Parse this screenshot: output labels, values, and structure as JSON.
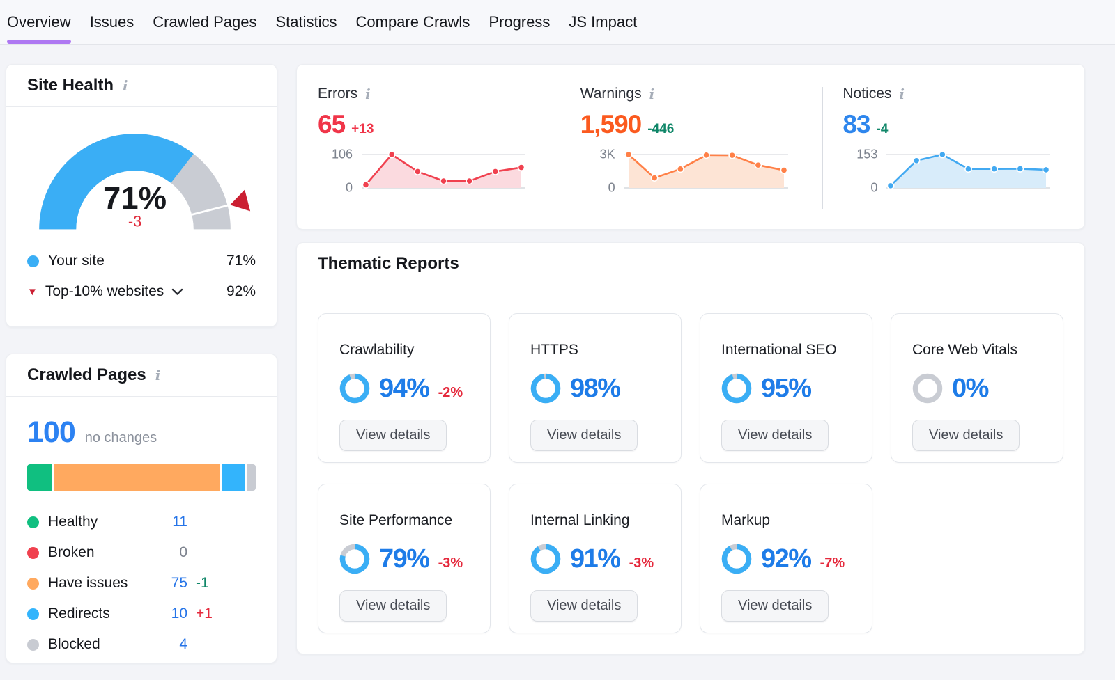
{
  "nav": {
    "active_color": "#ae78f2",
    "items": [
      {
        "label": "Overview",
        "active": true
      },
      {
        "label": "Issues",
        "active": false
      },
      {
        "label": "Crawled Pages",
        "active": false
      },
      {
        "label": "Statistics",
        "active": false
      },
      {
        "label": "Compare Crawls",
        "active": false
      },
      {
        "label": "Progress",
        "active": false
      },
      {
        "label": "JS Impact",
        "active": false
      }
    ]
  },
  "icons": {
    "info": "i",
    "triangle_down": "▼"
  },
  "site_health": {
    "title": "Site Health",
    "gauge": {
      "value_label": "71%",
      "value_pct": 71,
      "delta_label": "-3",
      "delta_color": "#e0293a",
      "benchmark_pct": 92,
      "arc_color": "#3aaef5",
      "track_color": "#c9ccd3",
      "marker_color": "#cb1f32"
    },
    "legend": [
      {
        "label": "Your site",
        "value": "71%",
        "marker_color": "#3aaef5"
      },
      {
        "label": "Top-10% websites",
        "value": "92%",
        "marker_color": "#cb1f32"
      }
    ]
  },
  "summary": {
    "sections": [
      {
        "title": "Errors",
        "value": "65",
        "delta": "+13",
        "value_color": "#f03549",
        "delta_color": "#f03549",
        "axis_max": "106",
        "axis_min": "0",
        "max": 106,
        "points": [
          10,
          106,
          52,
          22,
          22,
          52,
          65
        ],
        "line_color": "#f0414f",
        "fill_color": "#fbdadf"
      },
      {
        "title": "Warnings",
        "value": "1,590",
        "delta": "-446",
        "value_color": "#fb5a1f",
        "delta_color": "#0f8668",
        "axis_max": "3K",
        "axis_min": "0",
        "max": 3000,
        "points": [
          3000,
          900,
          1700,
          2950,
          2930,
          2050,
          1590
        ],
        "line_color": "#ff8047",
        "fill_color": "#fde4d5"
      },
      {
        "title": "Notices",
        "value": "83",
        "delta": "-4",
        "value_color": "#2e86ed",
        "delta_color": "#0f8668",
        "axis_max": "153",
        "axis_min": "0",
        "max": 153,
        "points": [
          10,
          125,
          153,
          87,
          87,
          88,
          83
        ],
        "line_color": "#42a9f1",
        "fill_color": "#d8ecfa"
      }
    ]
  },
  "crawled_pages": {
    "title": "Crawled Pages",
    "total": "100",
    "total_note": "no changes",
    "segments": [
      {
        "label": "Healthy",
        "pct": 11,
        "color": "#10bf80"
      },
      {
        "label": "Have issues",
        "pct": 75,
        "color": "#ffa95f"
      },
      {
        "label": "Redirects",
        "pct": 10,
        "color": "#33b4fc"
      },
      {
        "label": "Blocked",
        "pct": 4,
        "color": "#c8cbd2"
      }
    ],
    "legend": [
      {
        "label": "Healthy",
        "dot_color": "#10bf80",
        "value": "11",
        "value_color": "#2574e8",
        "delta": "",
        "delta_color": ""
      },
      {
        "label": "Broken",
        "dot_color": "#f0414f",
        "value": "0",
        "value_color": "#7d838e",
        "delta": "",
        "delta_color": ""
      },
      {
        "label": "Have issues",
        "dot_color": "#ffa95f",
        "value": "75",
        "value_color": "#2574e8",
        "delta": "-1",
        "delta_color": "#0f8668"
      },
      {
        "label": "Redirects",
        "dot_color": "#33b4fc",
        "value": "10",
        "value_color": "#2574e8",
        "delta": "+1",
        "delta_color": "#e5293c"
      },
      {
        "label": "Blocked",
        "dot_color": "#c8cbd2",
        "value": "4",
        "value_color": "#2574e8",
        "delta": "",
        "delta_color": ""
      }
    ]
  },
  "thematic": {
    "title": "Thematic Reports",
    "button_label": "View details",
    "ring_color": "#3aaef5",
    "ring_track_color": "#c9ccd3",
    "cards": [
      {
        "title": "Crawlability",
        "pct": 94,
        "pct_label": "94%",
        "delta": "-2%"
      },
      {
        "title": "HTTPS",
        "pct": 98,
        "pct_label": "98%",
        "delta": ""
      },
      {
        "title": "International SEO",
        "pct": 95,
        "pct_label": "95%",
        "delta": ""
      },
      {
        "title": "Core Web Vitals",
        "pct": 0,
        "pct_label": "0%",
        "delta": ""
      },
      {
        "title": "Site Performance",
        "pct": 79,
        "pct_label": "79%",
        "delta": "-3%"
      },
      {
        "title": "Internal Linking",
        "pct": 91,
        "pct_label": "91%",
        "delta": "-3%"
      },
      {
        "title": "Markup",
        "pct": 92,
        "pct_label": "92%",
        "delta": "-7%"
      }
    ]
  }
}
